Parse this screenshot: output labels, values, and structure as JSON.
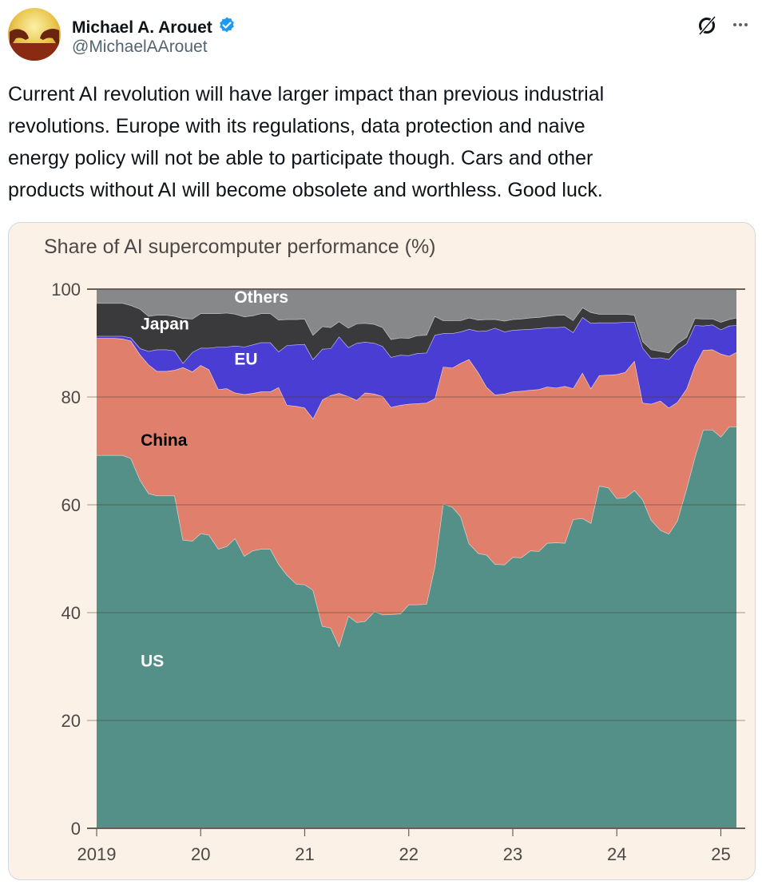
{
  "tweet": {
    "display_name": "Michael A. Arouet",
    "handle": "@MichaelAArouet",
    "verified": true,
    "verified_color": "#1d9bf0",
    "text": "Current AI revolution will have larger impact than previous industrial\nrevolutions. Europe with its regulations, data protection and naive\nenergy policy will not be able to participate though. Cars and other\nproducts without AI will become obsolete and worthless. Good luck.",
    "icons": {
      "grok": "grok-icon",
      "more": "more-options-icon",
      "verified": "verified-badge-icon"
    }
  },
  "chart_data": {
    "type": "area",
    "stacked": true,
    "title": "Share of AI supercomputer performance (%)",
    "xlabel": "",
    "ylabel": "",
    "ylim": [
      0,
      100
    ],
    "yticks": [
      0,
      20,
      40,
      60,
      80,
      100
    ],
    "xlim": [
      2019.0,
      2025.15
    ],
    "xticks": [
      2019,
      2020,
      2021,
      2022,
      2023,
      2024,
      2025
    ],
    "xtick_labels": [
      "2019",
      "20",
      "21",
      "22",
      "23",
      "24",
      "25"
    ],
    "grid": true,
    "legend": "inline labels",
    "series_order": [
      "US",
      "China",
      "EU",
      "Japan",
      "Others"
    ],
    "colors": {
      "US": "#548f88",
      "China": "#e0806c",
      "EU": "#4a3dd4",
      "Japan": "#3a3a3c",
      "Others": "#87888a"
    },
    "label_colors": {
      "US": "#ffffff",
      "China": "#000000",
      "EU": "#ffffff",
      "Japan": "#ffffff",
      "Others": "#ffffff"
    },
    "labels": {
      "US": {
        "x": 2019.5,
        "y": 30
      },
      "China": {
        "x": 2019.5,
        "y": 71
      },
      "EU": {
        "x": 2020.4,
        "y": 86
      },
      "Japan": {
        "x": 2019.5,
        "y": 92.5
      },
      "Others": {
        "x": 2020.4,
        "y": 97.5
      }
    },
    "x": [
      2019.0,
      2019.08,
      2019.17,
      2019.25,
      2019.33,
      2019.42,
      2019.5,
      2019.58,
      2019.67,
      2019.75,
      2019.83,
      2019.92,
      2020.0,
      2020.08,
      2020.17,
      2020.25,
      2020.33,
      2020.42,
      2020.5,
      2020.58,
      2020.67,
      2020.75,
      2020.83,
      2020.92,
      2021.0,
      2021.08,
      2021.17,
      2021.25,
      2021.33,
      2021.42,
      2021.5,
      2021.58,
      2021.67,
      2021.75,
      2021.83,
      2021.92,
      2022.0,
      2022.08,
      2022.17,
      2022.25,
      2022.33,
      2022.42,
      2022.5,
      2022.58,
      2022.67,
      2022.75,
      2022.83,
      2022.92,
      2023.0,
      2023.08,
      2023.17,
      2023.25,
      2023.33,
      2023.42,
      2023.5,
      2023.58,
      2023.67,
      2023.75,
      2023.83,
      2023.92,
      2024.0,
      2024.08,
      2024.17,
      2024.25,
      2024.33,
      2024.42,
      2024.5,
      2024.58,
      2024.67,
      2024.75,
      2024.83,
      2024.92,
      2025.0,
      2025.08,
      2025.15
    ],
    "series": [
      {
        "name": "US",
        "values": [
          69.2,
          69.2,
          69.2,
          69.2,
          68.6,
          64.5,
          62.1,
          61.7,
          61.7,
          61.7,
          53.5,
          53.3,
          54.7,
          54.4,
          51.8,
          52.3,
          53.8,
          50.5,
          51.5,
          51.8,
          51.8,
          49,
          47,
          45.3,
          45.2,
          44.2,
          37.5,
          37.2,
          33.8,
          39.4,
          38.2,
          38.4,
          40.2,
          39.6,
          39.7,
          39.8,
          41.5,
          41.5,
          41.6,
          48.5,
          60.2,
          59.6,
          57.8,
          52.8,
          51,
          50.7,
          49,
          48.9,
          50.3,
          50.2,
          51.5,
          51.4,
          52.9,
          53,
          52.9,
          57.3,
          57.5,
          56.6,
          63.5,
          63.2,
          61.2,
          61.3,
          62.7,
          60.9,
          57.2,
          55.3,
          54.6,
          57,
          63,
          68.8,
          73.9,
          73.9,
          72.6,
          74.5,
          74.5
        ]
      },
      {
        "name": "China",
        "values": [
          21.7,
          21.7,
          21.7,
          21.6,
          21.8,
          23.3,
          23.9,
          23.1,
          23.1,
          23.3,
          32,
          31.4,
          31.2,
          30.7,
          29.6,
          29.3,
          27,
          30,
          29.2,
          29.2,
          29.2,
          32.8,
          31.5,
          33,
          32.8,
          31.8,
          42,
          43.1,
          46.9,
          40.7,
          41.2,
          42.4,
          40.4,
          40.5,
          38.4,
          38.7,
          37.2,
          37.3,
          37.3,
          31.2,
          25.4,
          25.8,
          28.5,
          34.2,
          33.5,
          31.1,
          31.4,
          31.7,
          30.7,
          30.9,
          29.8,
          30,
          29,
          28.7,
          29.1,
          24.3,
          27,
          25,
          20.5,
          20.9,
          23,
          23.3,
          24,
          18,
          21.5,
          24,
          23.4,
          22,
          18.5,
          17,
          14.8,
          14.9,
          15.4,
          13.1,
          13.8
        ]
      },
      {
        "name": "EU",
        "values": [
          0.4,
          0.4,
          0.4,
          0.5,
          0.6,
          1.2,
          2.5,
          4,
          4.0,
          3.6,
          0.8,
          3.6,
          3.2,
          4,
          7.9,
          7.7,
          8.7,
          8.8,
          9.0,
          9.1,
          9.1,
          6.6,
          11.1,
          11.4,
          11.8,
          11,
          9.4,
          8.7,
          10.5,
          9.1,
          10.6,
          9.4,
          9.4,
          9.3,
          9.3,
          9.3,
          9,
          9.3,
          9.3,
          11.8,
          6.2,
          6.4,
          5.8,
          5.6,
          7.7,
          10.5,
          12.4,
          11.5,
          11.4,
          11.4,
          11.3,
          11.3,
          11,
          11.2,
          11.0,
          10.4,
          10.3,
          12.1,
          9.8,
          9.7,
          9.6,
          9.3,
          7.2,
          10.2,
          8.5,
          8,
          9.0,
          9.7,
          8.4,
          7.5,
          4.5,
          4.6,
          4.5,
          5.6,
          5
        ]
      },
      {
        "name": "Japan",
        "values": [
          6.1,
          6.1,
          6.1,
          6.1,
          6.0,
          7.3,
          6.5,
          6.4,
          6.4,
          6.4,
          8.3,
          6.2,
          6.4,
          6.4,
          6.2,
          6.3,
          5.9,
          5.6,
          5.4,
          5.4,
          5.4,
          5.9,
          4.8,
          4.7,
          4.7,
          4.5,
          4.2,
          3.9,
          2.8,
          3.6,
          3.6,
          3.5,
          3.5,
          3.5,
          3.3,
          3.2,
          3.2,
          3.3,
          3.3,
          3.5,
          2.4,
          2.4,
          2.1,
          2.1,
          2.1,
          2.1,
          1.6,
          2.0,
          2.0,
          2.0,
          2.1,
          2.1,
          2.1,
          2.3,
          2.2,
          2.2,
          1.8,
          2.0,
          1.6,
          1.6,
          1.6,
          1.5,
          1.3,
          1.2,
          1.6,
          1.2,
          1.2,
          1.2,
          1.2,
          1.3,
          1.3,
          1.1,
          1.4,
          1.2,
          1.4
        ]
      },
      {
        "name": "Others",
        "values": [
          2.6,
          2.6,
          2.6,
          2.6,
          3.0,
          3.7,
          5.0,
          4.8,
          4.8,
          5.0,
          5.4,
          5.5,
          4.5,
          4.5,
          4.5,
          4.4,
          4.6,
          5.1,
          4.9,
          4.5,
          4.5,
          5.7,
          5.6,
          5.6,
          5.5,
          8.5,
          6.9,
          7.1,
          6.0,
          7.5,
          6.4,
          6.3,
          6.5,
          7.1,
          9.3,
          9.0,
          9.1,
          8.6,
          8.5,
          5,
          5.8,
          5.8,
          5.8,
          5.3,
          5.7,
          5.6,
          5.6,
          5.9,
          5.6,
          5.5,
          5.3,
          5.2,
          5.0,
          4.8,
          4.8,
          5.8,
          3.4,
          4.3,
          4.6,
          4.6,
          4.6,
          4.6,
          4.8,
          9.7,
          11.2,
          11.5,
          11.8,
          10.1,
          8.9,
          7.4,
          5.5,
          5.5,
          6.1,
          5.6,
          5.3
        ]
      }
    ]
  }
}
